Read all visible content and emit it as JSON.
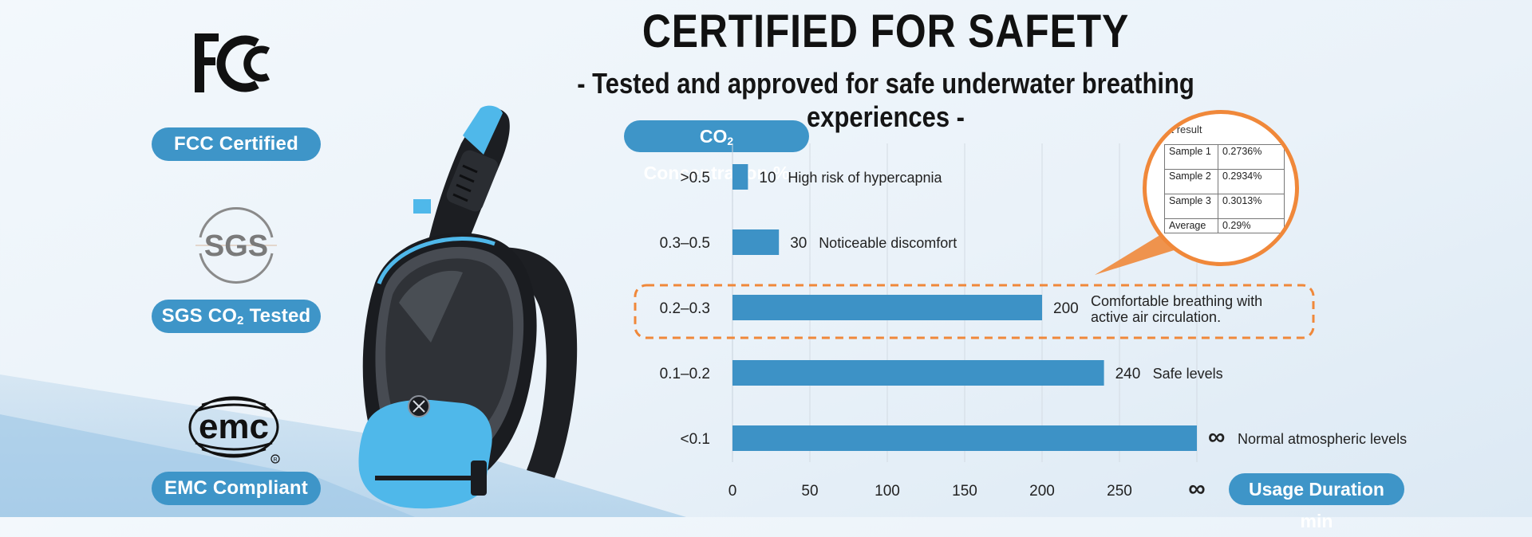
{
  "header": {
    "title": "CERTIFIED FOR SAFETY",
    "subtitle": "- Tested and approved for safe underwater breathing experiences -"
  },
  "certifications": [
    {
      "logo_icon": "fcc-logo-icon",
      "label": "FCC Certified"
    },
    {
      "logo_icon": "sgs-logo-icon",
      "logo_text": "SGS",
      "label_main": "SGS CO",
      "label_sub": "2",
      "label_tail": " Tested"
    },
    {
      "logo_icon": "emc-logo-icon",
      "logo_text": "emc",
      "label": "EMC Compliant"
    }
  ],
  "colors": {
    "bar": "#3d92c6",
    "pill": "#3e95c8",
    "highlight": "#f0883a",
    "mask_blue": "#4fb8ea",
    "mask_dark": "#1a1c20"
  },
  "test_result": {
    "title": "st result",
    "rows": [
      {
        "name": "Sample 1",
        "value": "0.2736%"
      },
      {
        "name": "Sample 2",
        "value": "0.2934%"
      },
      {
        "name": "Sample 3",
        "value": "0.3013%"
      },
      {
        "name": "Average",
        "value": "0.29%"
      }
    ]
  },
  "chart_data": {
    "type": "bar",
    "orientation": "horizontal",
    "ylabel_main": "CO",
    "ylabel_sub": "2",
    "ylabel_tail": " Concentration %",
    "xlabel": "Usage Duration  min",
    "categories": [
      ">0.5",
      "0.3–0.5",
      "0.2–0.3",
      "0.1–0.2",
      "<0.1"
    ],
    "values": [
      10,
      30,
      200,
      240,
      300
    ],
    "value_labels": [
      "10",
      "30",
      "200",
      "240",
      "∞"
    ],
    "annotations": [
      "High risk of hypercapnia",
      "Noticeable discomfort",
      "Comfortable breathing with\nactive air circulation.",
      "Safe levels",
      "Normal atmospheric levels"
    ],
    "highlighted_category": "0.2–0.3",
    "xticks": [
      "0",
      "50",
      "100",
      "150",
      "200",
      "250",
      "∞"
    ],
    "xlim": [
      0,
      300
    ],
    "grid": true
  }
}
